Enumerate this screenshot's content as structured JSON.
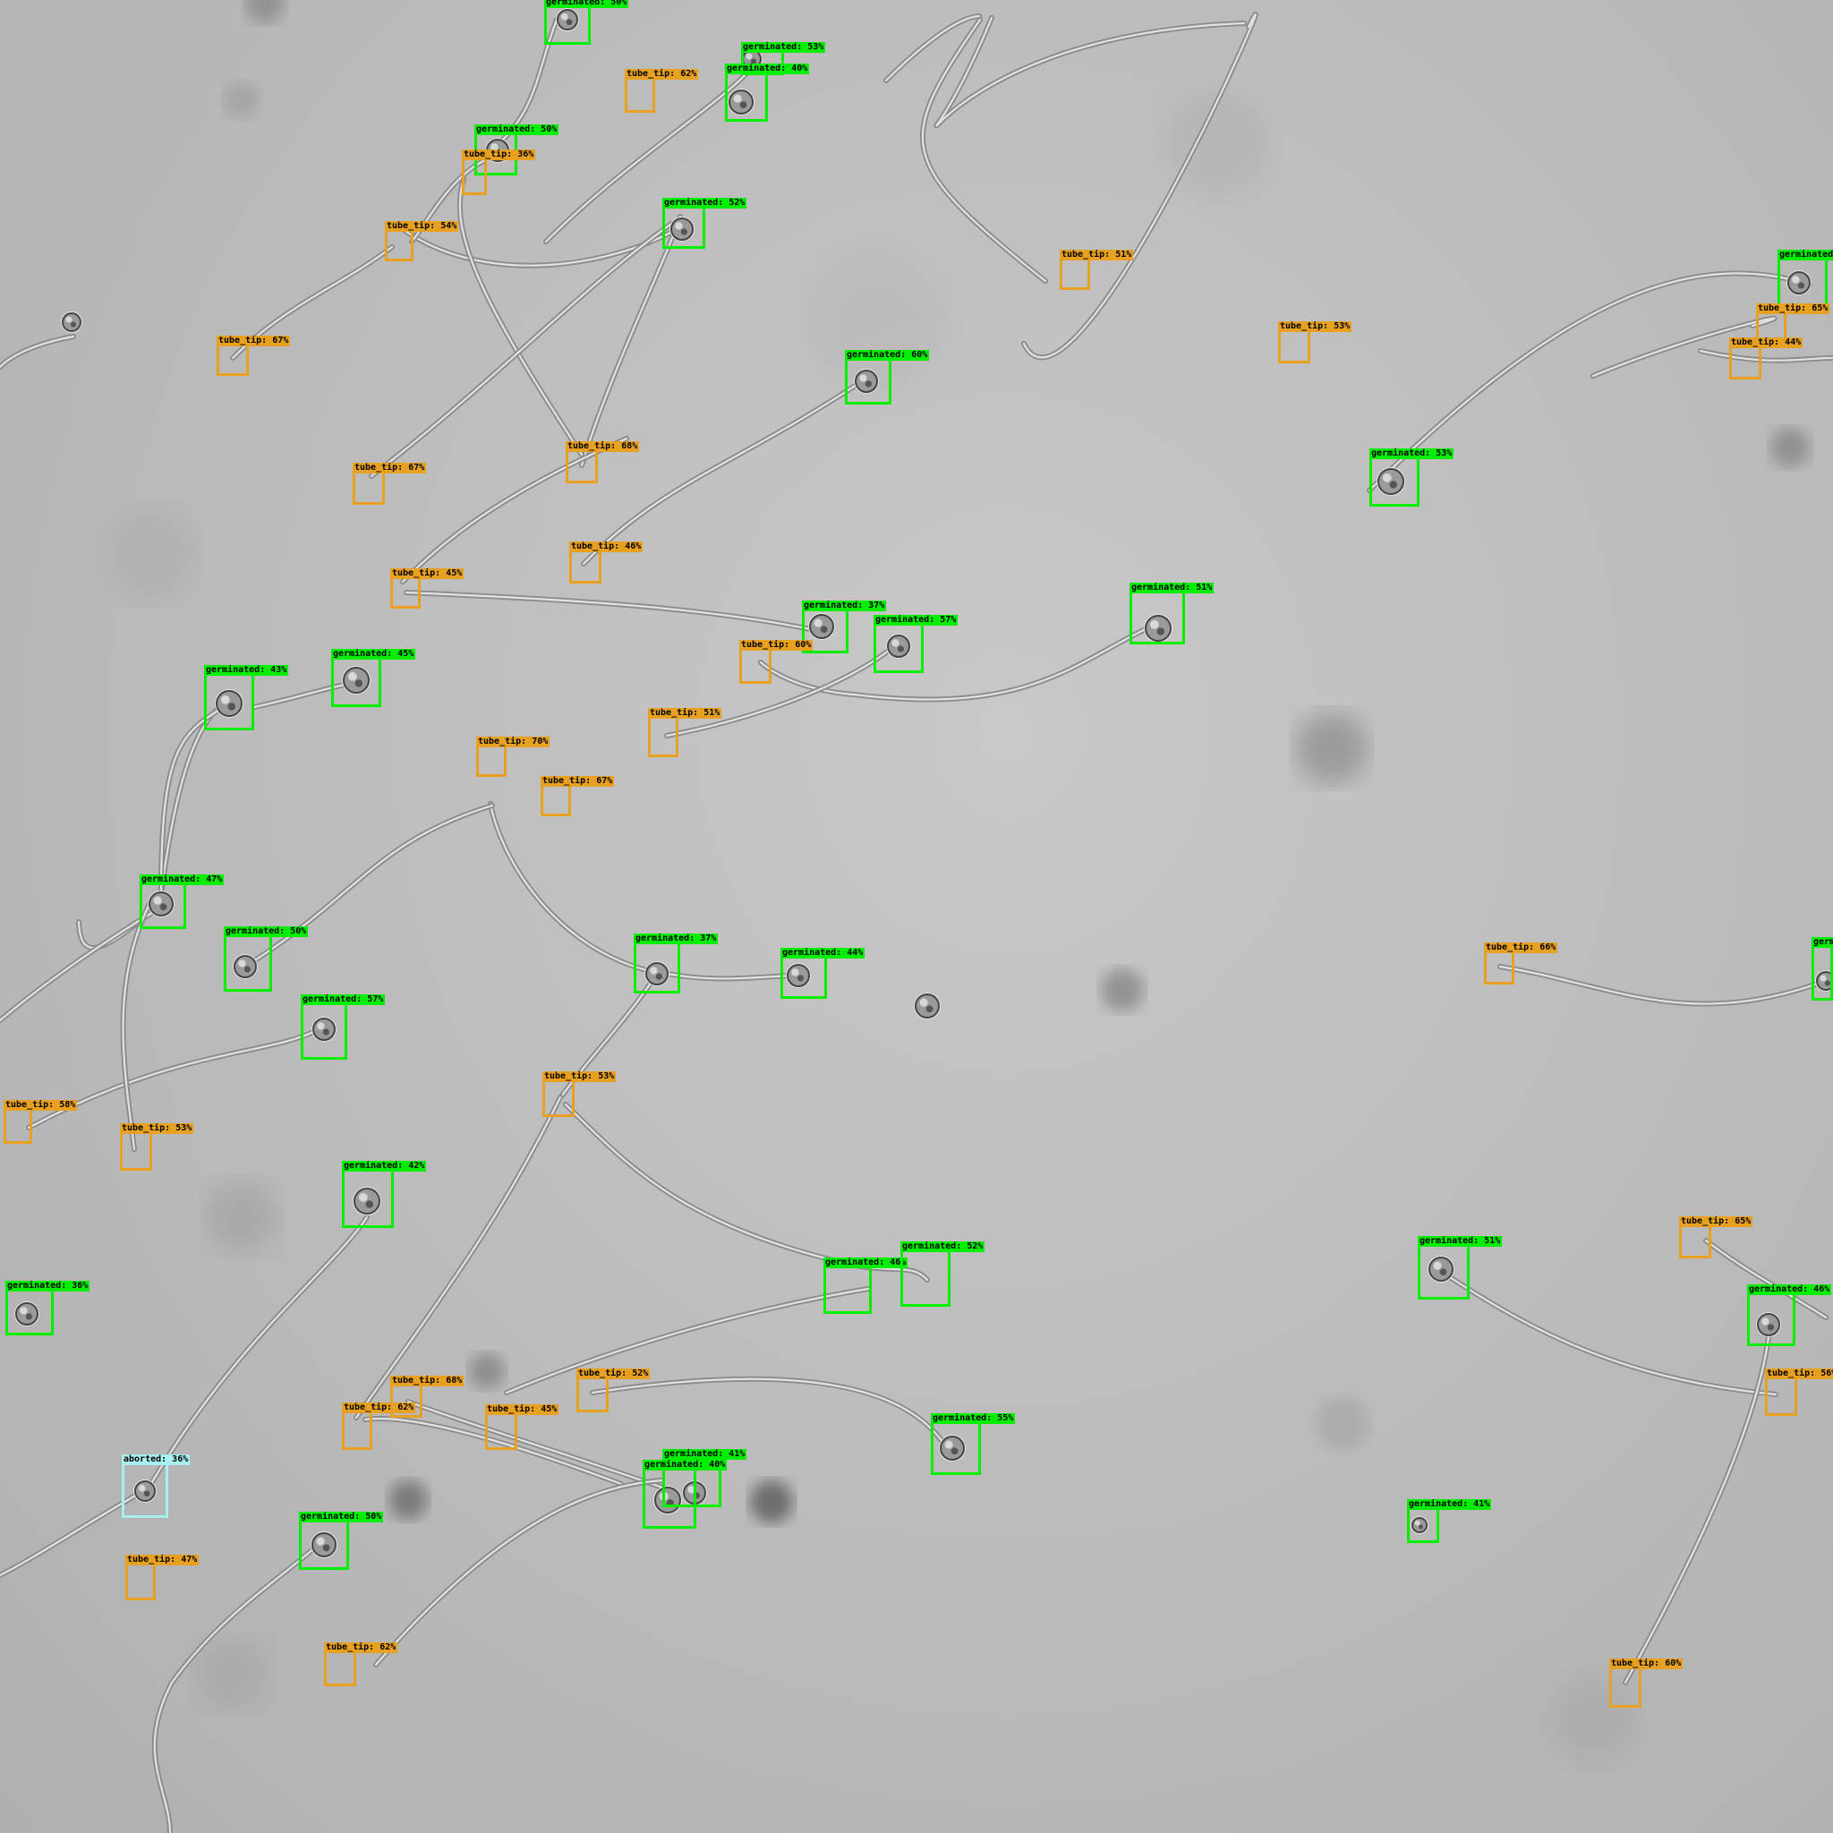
{
  "image": {
    "title": "",
    "colors": {
      "germinated": "#00ee00",
      "tube_tip": "#e8a020",
      "aborted": "#a8f0f0"
    }
  },
  "detections": [
    {
      "cls": "germinated",
      "text": "germinated: 50%"
    },
    {
      "cls": "germinated",
      "text": "germinated: 53%"
    },
    {
      "cls": "germinated",
      "text": "germinated: 40%"
    },
    {
      "cls": "tube_tip",
      "text": "tube_tip: 62%"
    },
    {
      "cls": "germinated",
      "text": "germinated: 50%"
    },
    {
      "cls": "tube_tip",
      "text": "tube_tip: 36%"
    },
    {
      "cls": "germinated",
      "text": "germinated: 52%"
    },
    {
      "cls": "tube_tip",
      "text": "tube_tip: 54%"
    },
    {
      "cls": "tube_tip",
      "text": "tube_tip: 67%"
    },
    {
      "cls": "tube_tip",
      "text": "tube_tip: 51%"
    },
    {
      "cls": "tube_tip",
      "text": "tube_tip: 53%"
    },
    {
      "cls": "germinated",
      "text": "germinated"
    },
    {
      "cls": "tube_tip",
      "text": "tube_tip: 65%"
    },
    {
      "cls": "tube_tip",
      "text": "tube_tip: 44%"
    },
    {
      "cls": "germinated",
      "text": "germinated: 60%"
    },
    {
      "cls": "tube_tip",
      "text": "tube_tip: 68%"
    },
    {
      "cls": "tube_tip",
      "text": "tube_tip: 67%"
    },
    {
      "cls": "germinated",
      "text": "germinated: 53%"
    },
    {
      "cls": "tube_tip",
      "text": "tube_tip: 46%"
    },
    {
      "cls": "tube_tip",
      "text": "tube_tip: 45%"
    },
    {
      "cls": "germinated",
      "text": "germinated: 37%"
    },
    {
      "cls": "germinated",
      "text": "germinated: 57%"
    },
    {
      "cls": "germinated",
      "text": "germinated: 51%"
    },
    {
      "cls": "tube_tip",
      "text": "tube_tip: 60%"
    },
    {
      "cls": "germinated",
      "text": "germinated: 45%"
    },
    {
      "cls": "germinated",
      "text": "germinated: 43%"
    },
    {
      "cls": "tube_tip",
      "text": "tube_tip: 51%"
    },
    {
      "cls": "tube_tip",
      "text": "tube_tip: 70%"
    },
    {
      "cls": "tube_tip",
      "text": "tube_tip: 67%"
    },
    {
      "cls": "germinated",
      "text": "germinated: 47%"
    },
    {
      "cls": "germinated",
      "text": "germinated: 50%"
    },
    {
      "cls": "germinated",
      "text": "germinated: 37%"
    },
    {
      "cls": "germinated",
      "text": "germinated: 44%"
    },
    {
      "cls": "tube_tip",
      "text": "tube_tip: 66%"
    },
    {
      "cls": "germinated",
      "text": "germ"
    },
    {
      "cls": "germinated",
      "text": "germinated: 57%"
    },
    {
      "cls": "tube_tip",
      "text": "tube_tip: 58%"
    },
    {
      "cls": "tube_tip",
      "text": "tube_tip: 53%"
    },
    {
      "cls": "tube_tip",
      "text": "tube_tip: 53%"
    },
    {
      "cls": "germinated",
      "text": "germinated: 42%"
    },
    {
      "cls": "germinated",
      "text": "germinated: 36%"
    },
    {
      "cls": "germinated",
      "text": "germinated: 51%"
    },
    {
      "cls": "tube_tip",
      "text": "tube_tip: 65%"
    },
    {
      "cls": "germinated",
      "text": "germinated: 46%"
    },
    {
      "cls": "germinated",
      "text": "germinated: 52%"
    },
    {
      "cls": "germinated",
      "text": "germinated: 46%"
    },
    {
      "cls": "tube_tip",
      "text": "tube_tip: 56%"
    },
    {
      "cls": "tube_tip",
      "text": "tube_tip: 52%"
    },
    {
      "cls": "tube_tip",
      "text": "tube_tip: 68%"
    },
    {
      "cls": "tube_tip",
      "text": "tube_tip: 62%"
    },
    {
      "cls": "tube_tip",
      "text": "tube_tip: 45%"
    },
    {
      "cls": "germinated",
      "text": "germinated: 55%"
    },
    {
      "cls": "germinated",
      "text": "germinated: 41%"
    },
    {
      "cls": "germinated",
      "text": "germinated: 40%"
    },
    {
      "cls": "germinated",
      "text": "germinated: 41%"
    },
    {
      "cls": "aborted",
      "text": "aborted: 36%"
    },
    {
      "cls": "germinated",
      "text": "germinated: 50%"
    },
    {
      "cls": "tube_tip",
      "text": "tube_tip: 47%"
    },
    {
      "cls": "tube_tip",
      "text": "tube_tip: 62%"
    },
    {
      "cls": "tube_tip",
      "text": "tube_tip: 60%"
    }
  ]
}
